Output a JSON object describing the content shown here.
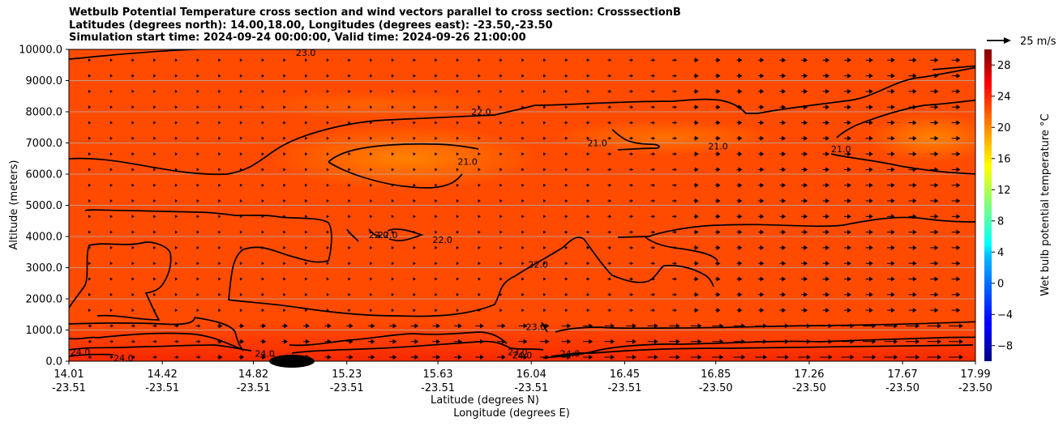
{
  "chart_data": {
    "type": "contour-vector cross section",
    "title_lines": [
      "Wetbulb Potential Temperature cross section and wind vectors parallel to cross section: CrosssectionB",
      "Latitudes (degrees north): 14.00,18.00, Longitudes (degrees east): -23.50,-23.50",
      "Simulation start time: 2024-09-24 00:00:00, Valid time: 2024-09-26 21:00:00"
    ],
    "ylabel": "Altitude (meters)",
    "ylim": [
      0,
      10000
    ],
    "yticks": [
      "0.0",
      "1000.0",
      "2000.0",
      "3000.0",
      "4000.0",
      "5000.0",
      "6000.0",
      "7000.0",
      "8000.0",
      "9000.0",
      "10000.0"
    ],
    "xlabel_1": "Latitude (degrees N)",
    "xlabel_2": "Longitude (degrees E)",
    "xticks": [
      {
        "lat": "14.01",
        "lon": "-23.51"
      },
      {
        "lat": "14.42",
        "lon": "-23.51"
      },
      {
        "lat": "14.82",
        "lon": "-23.51"
      },
      {
        "lat": "15.23",
        "lon": "-23.51"
      },
      {
        "lat": "15.63",
        "lon": "-23.51"
      },
      {
        "lat": "16.04",
        "lon": "-23.51"
      },
      {
        "lat": "16.45",
        "lon": "-23.51"
      },
      {
        "lat": "16.85",
        "lon": "-23.50"
      },
      {
        "lat": "17.26",
        "lon": "-23.50"
      },
      {
        "lat": "17.67",
        "lon": "-23.50"
      },
      {
        "lat": "17.99",
        "lon": "-23.50"
      }
    ],
    "grid": "horizontal",
    "colorbar": {
      "label": "Wet bulb potential temperature $^\\circ$C",
      "label_text": "Wet bulb potential temperature °C",
      "range": [
        -10,
        30
      ],
      "ticks": [
        "−8",
        "−4",
        "0",
        "4",
        "8",
        "12",
        "16",
        "20",
        "24",
        "28"
      ],
      "colormap": "jet"
    },
    "quiver_key": "25 m/s",
    "contour_levels": [
      "21.0",
      "22.0",
      "23.0",
      "24.0"
    ],
    "contour_labels": [
      {
        "text": "22.0",
        "lat": 15.82,
        "alt": 8000
      },
      {
        "text": "21.0",
        "lat": 15.76,
        "alt": 6400
      },
      {
        "text": "21.0",
        "lat": 16.33,
        "alt": 7000
      },
      {
        "text": "21.0",
        "lat": 16.86,
        "alt": 6900
      },
      {
        "text": "21.0",
        "lat": 17.4,
        "alt": 6800
      },
      {
        "text": "22.0",
        "lat": 15.37,
        "alt": 4050
      },
      {
        "text": "22.0",
        "lat": 15.41,
        "alt": 4050
      },
      {
        "text": "22.0",
        "lat": 15.65,
        "alt": 3900
      },
      {
        "text": "22.0",
        "lat": 16.07,
        "alt": 3100
      },
      {
        "text": "23.0",
        "lat": 15.98,
        "alt": 300
      },
      {
        "text": "23.0",
        "lat": 16.06,
        "alt": 1100
      },
      {
        "text": "24.0",
        "lat": 16.0,
        "alt": 200
      },
      {
        "text": "24.0",
        "lat": 16.21,
        "alt": 250
      },
      {
        "text": "24.0",
        "lat": 14.25,
        "alt": 100
      },
      {
        "text": "24.0",
        "lat": 14.06,
        "alt": 300
      },
      {
        "text": "24.0",
        "lat": 14.87,
        "alt": 250
      },
      {
        "text": "24.0",
        "lat": 14.94,
        "alt": 80
      },
      {
        "text": "23.0",
        "lat": 15.05,
        "alt": 9900
      }
    ]
  }
}
